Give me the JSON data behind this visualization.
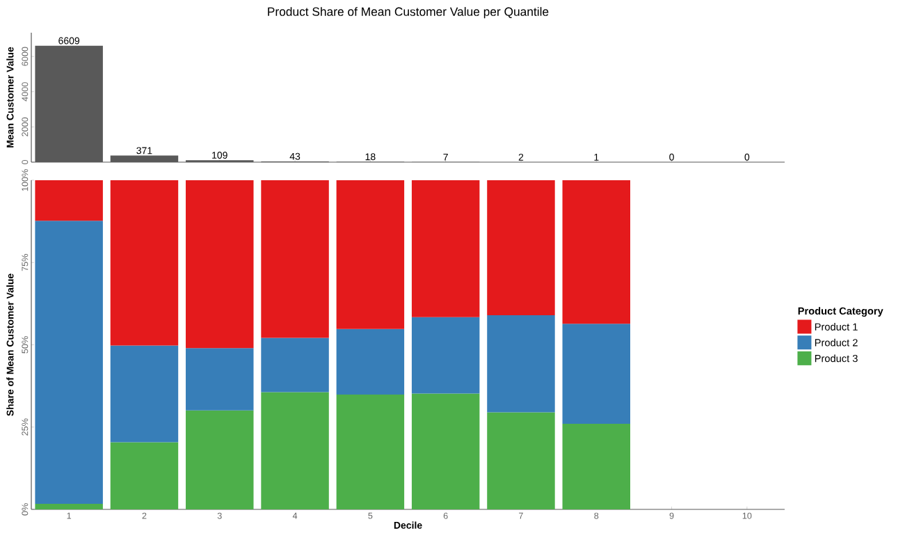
{
  "chart_data": [
    {
      "type": "bar",
      "title": "Product Share of Mean Customer Value per Quantile",
      "ylabel": "Mean Customer Value",
      "categories": [
        "1",
        "2",
        "3",
        "4",
        "5",
        "6",
        "7",
        "8",
        "9",
        "10"
      ],
      "values": [
        6609,
        371,
        109,
        43,
        18,
        7,
        2,
        1,
        0,
        0
      ],
      "color": "#595959",
      "ylim": [
        0,
        7350
      ],
      "yticks": [
        0,
        2000,
        4000,
        6000
      ],
      "data_labels": true,
      "tick_labels": "y",
      "grid": false
    },
    {
      "type": "bar",
      "stacked": true,
      "xlabel": "Decile",
      "ylabel": "Share of Mean Customer Value",
      "legend_title": "Product Category",
      "legend": "right",
      "grid": false,
      "categories": [
        "1",
        "2",
        "3",
        "4",
        "5",
        "6",
        "7",
        "8",
        "9",
        "10"
      ],
      "ylim": [
        0,
        100
      ],
      "yticks": [
        {
          "value": 0,
          "label": "0%"
        },
        {
          "value": 25,
          "label": "25%"
        },
        {
          "value": 50,
          "label": "50%"
        },
        {
          "value": 75,
          "label": "75%"
        },
        {
          "value": 100,
          "label": "100%"
        }
      ],
      "series": [
        {
          "name": "Product 3",
          "color": "#4daf4a",
          "values": [
            1.7,
            20.4,
            30.1,
            35.6,
            34.9,
            35.2,
            29.5,
            26.0,
            null,
            null
          ]
        },
        {
          "name": "Product 2",
          "color": "#377eb8",
          "values": [
            86.0,
            29.4,
            18.9,
            16.5,
            19.9,
            23.2,
            29.5,
            30.4,
            null,
            null
          ]
        },
        {
          "name": "Product 1",
          "color": "#e41a1c",
          "values": [
            12.3,
            50.2,
            51.0,
            47.9,
            45.2,
            41.6,
            41.0,
            43.6,
            null,
            null
          ]
        }
      ]
    }
  ]
}
